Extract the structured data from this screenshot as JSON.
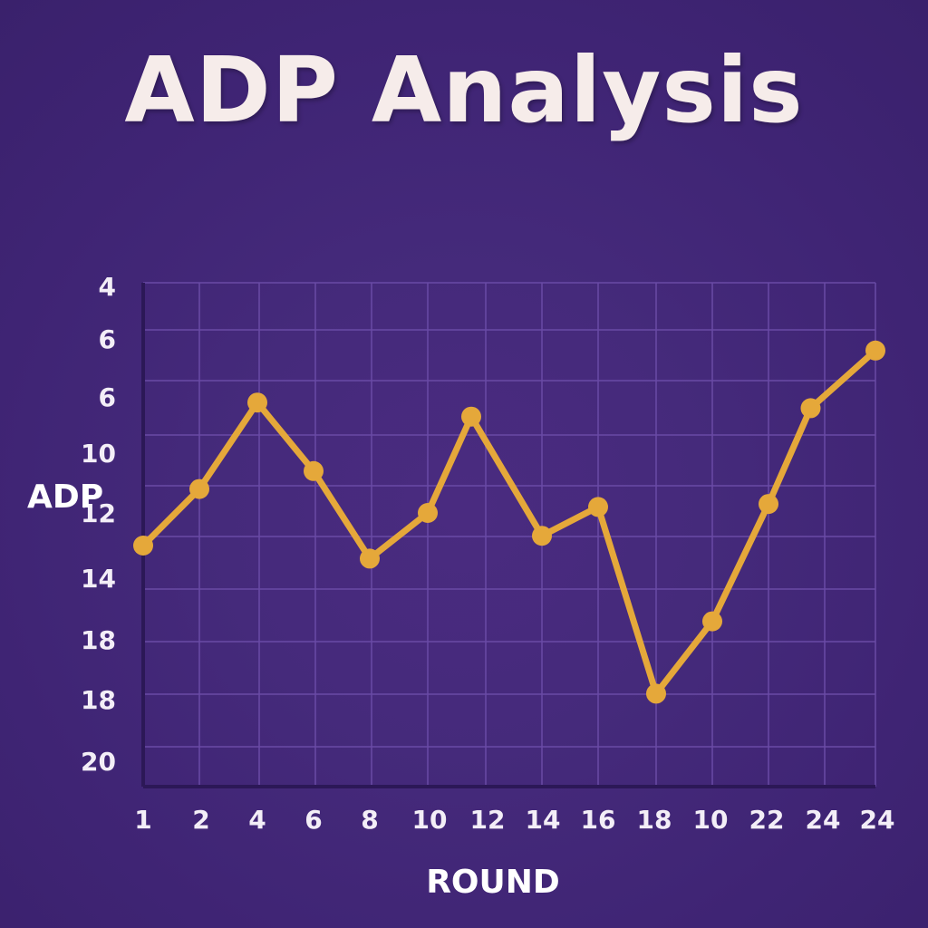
{
  "chart_data": {
    "type": "line",
    "title": "ADP Analysis",
    "xlabel": "ROUND",
    "ylabel": "ADP",
    "x_tick_labels": [
      "1",
      "2",
      "4",
      "6",
      "8",
      "10",
      "12",
      "14",
      "16",
      "18",
      "10",
      "22",
      "24",
      "24"
    ],
    "y_tick_labels": [
      "4",
      "6",
      "6",
      "10",
      "12",
      "14",
      "18",
      "18",
      "20"
    ],
    "grid": true,
    "y_inverted": true,
    "series": [
      {
        "color": "#e5a83a",
        "points": [
          {
            "x": 1,
            "y": 13.0
          },
          {
            "x": 2,
            "y": 11.2
          },
          {
            "x": 4,
            "y": 8.2
          },
          {
            "x": 6,
            "y": 10.6
          },
          {
            "x": 8,
            "y": 13.4
          },
          {
            "x": 10,
            "y": 12.0
          },
          {
            "x": 11.5,
            "y": 8.7
          },
          {
            "x": 14,
            "y": 12.7
          },
          {
            "x": 16,
            "y": 11.8
          },
          {
            "x": 18,
            "y": 17.8
          },
          {
            "x": 20,
            "y": 15.4
          },
          {
            "x": 22,
            "y": 11.7
          },
          {
            "x": 23.5,
            "y": 8.4
          },
          {
            "x": 25,
            "y": 6.4
          }
        ]
      }
    ]
  },
  "colors": {
    "background": "#452a7b",
    "grid": "#6a4ba6",
    "axis": "#2c1857",
    "line": "#e5a83a",
    "text": "#f3eef7"
  }
}
